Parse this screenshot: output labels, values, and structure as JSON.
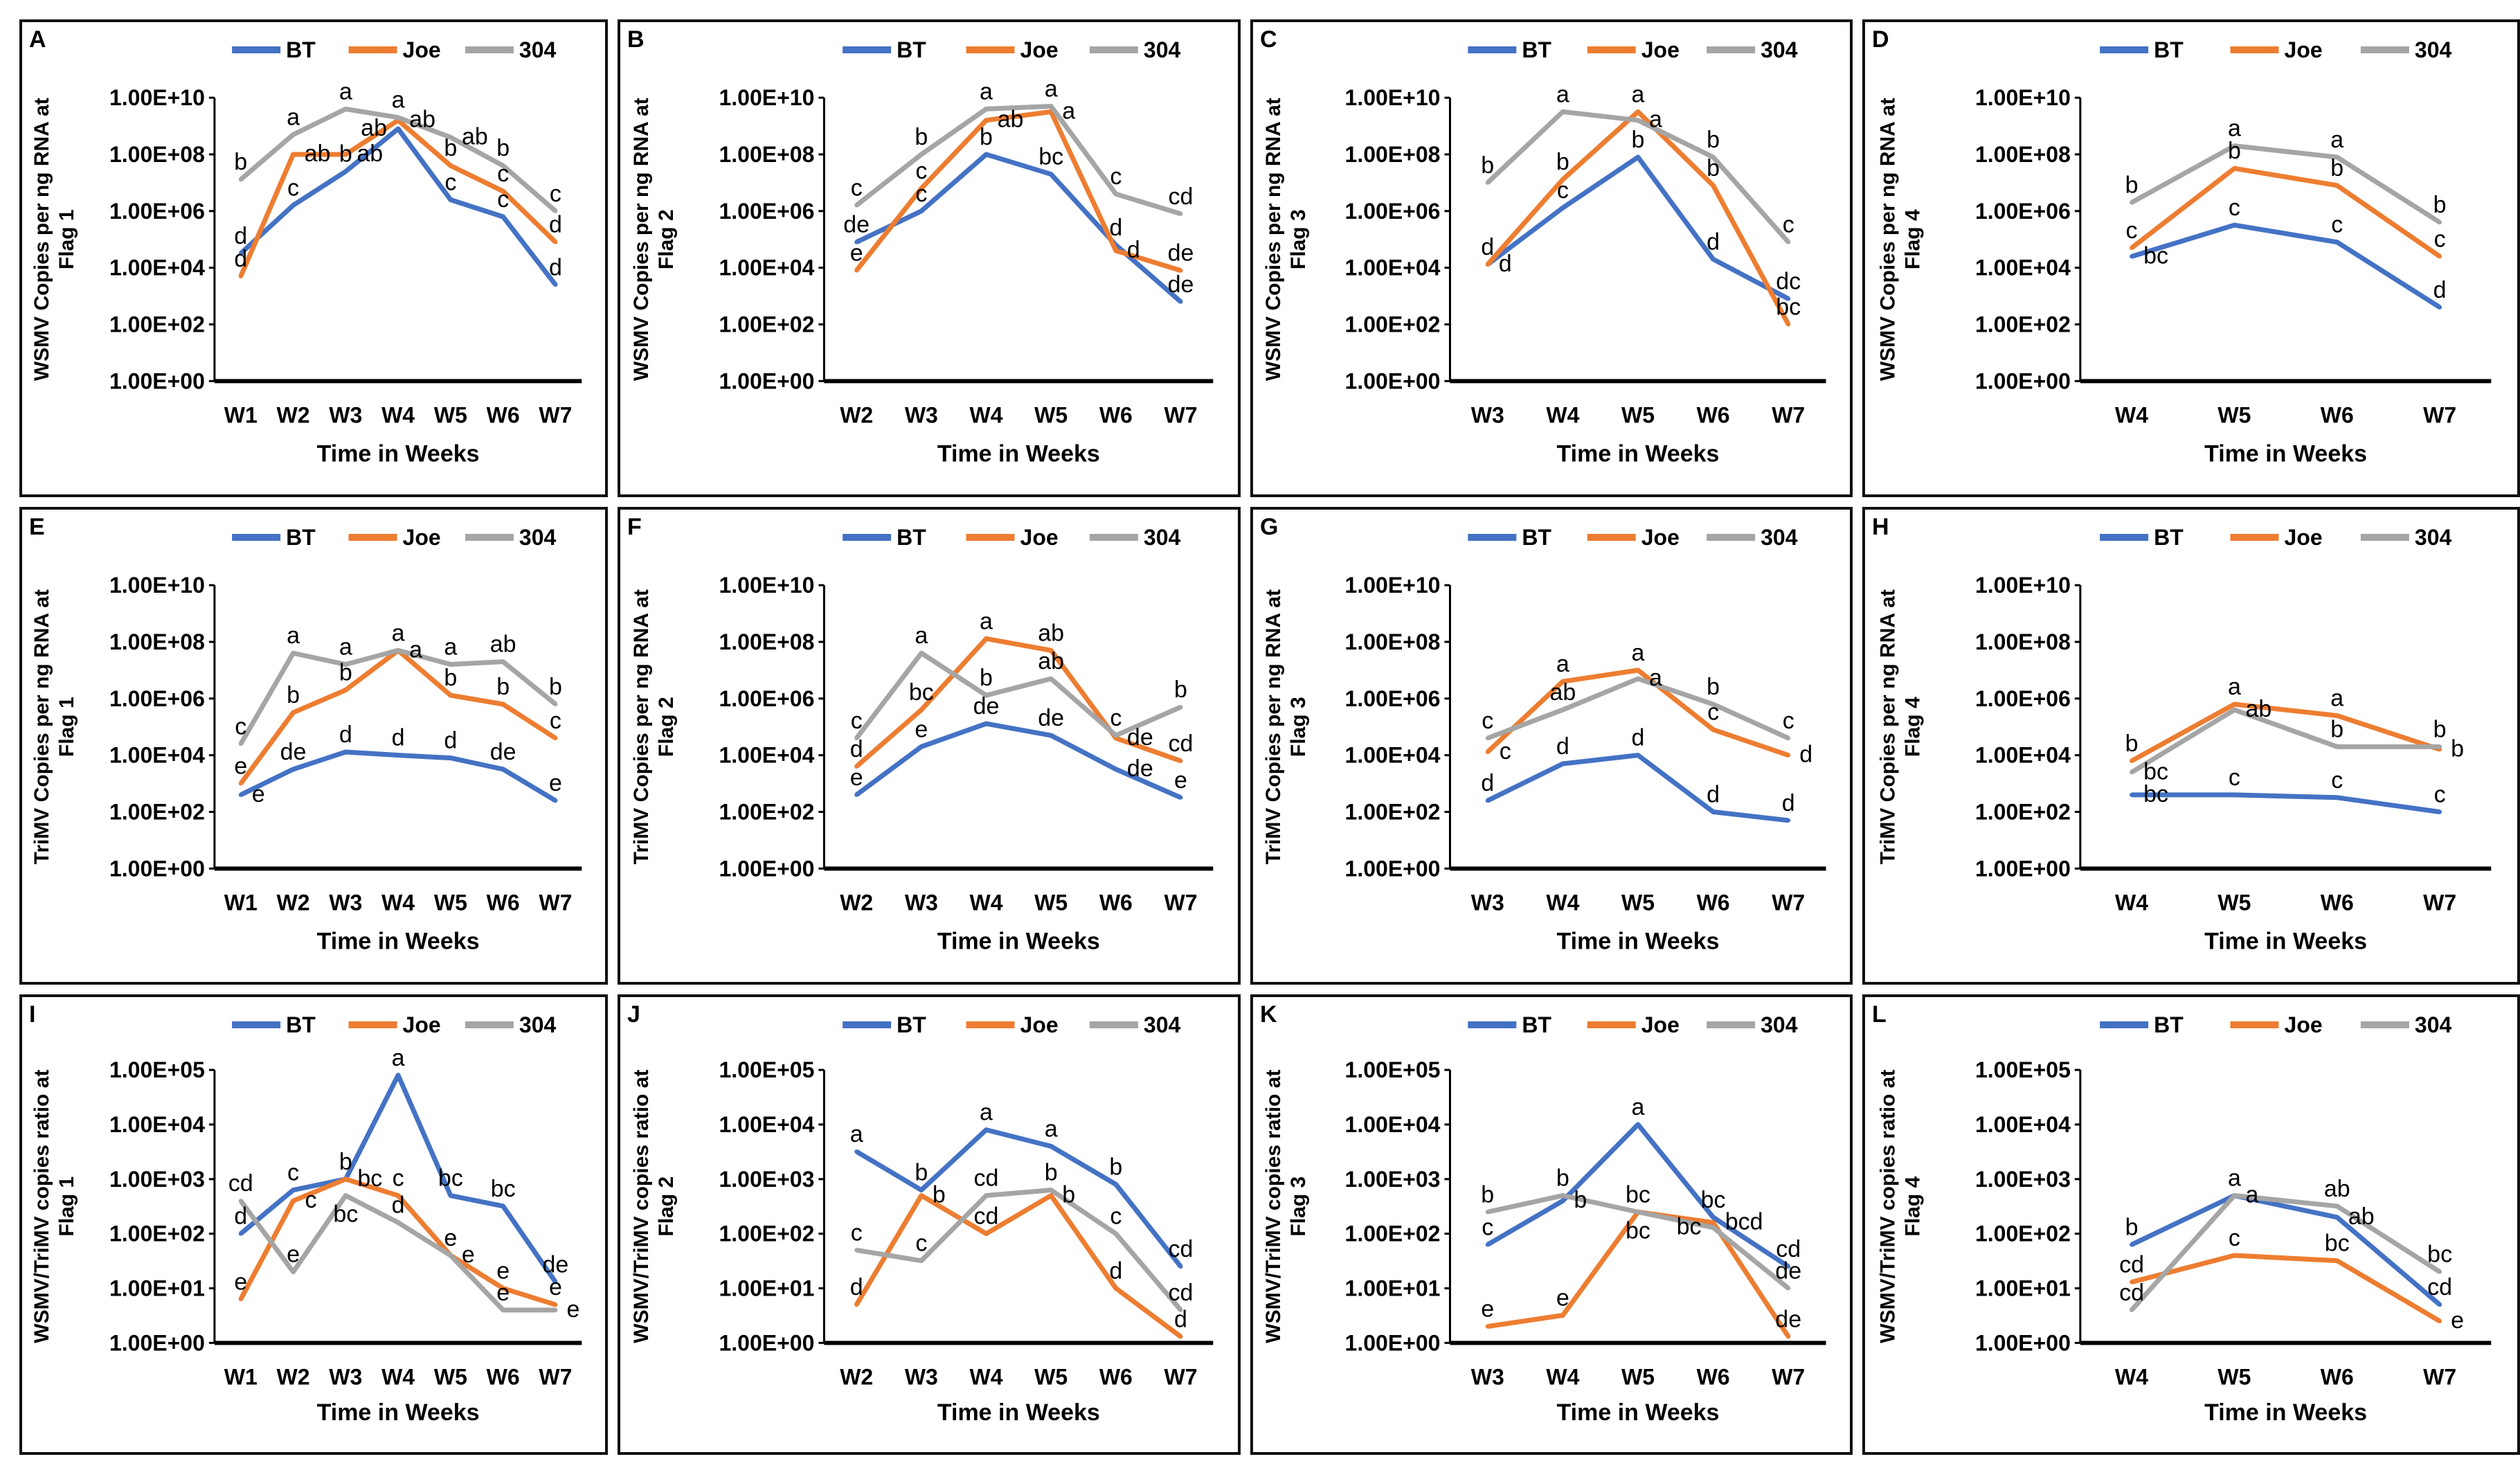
{
  "chart_data": [
    {
      "panel": "A",
      "type": "line",
      "ylabel": "WSMV Copies per ng RNA at Flag 1",
      "xlabel": "Time in Weeks",
      "y_scale": "log",
      "ylim": [
        1,
        10000000000.0
      ],
      "yticks": [
        "1.00E+00",
        "1.00E+02",
        "1.00E+04",
        "1.00E+06",
        "1.00E+08",
        "1.00E+10"
      ],
      "categories": [
        "W1",
        "W2",
        "W3",
        "W4",
        "W5",
        "W6",
        "W7"
      ],
      "series": [
        {
          "name": "BT",
          "color": "#4472C4",
          "values": [
            32000.0,
            1600000.0,
            25000000.0,
            800000000.0,
            2500000.0,
            630000.0,
            2500.0
          ],
          "letters": [
            "d",
            "c",
            "b",
            "ab",
            "c",
            "c",
            "d"
          ]
        },
        {
          "name": "Joe",
          "color": "#ED7D31",
          "values": [
            5000.0,
            100000000.0,
            100000000.0,
            1600000000.0,
            40000000.0,
            5000000.0,
            80000.0
          ],
          "letters": [
            "d",
            "ab",
            "ab",
            "ab",
            "b",
            "c",
            "d"
          ]
        },
        {
          "name": "304",
          "color": "#A5A5A5",
          "values": [
            13000000.0,
            500000000.0,
            4000000000.0,
            2000000000.0,
            400000000.0,
            40000000.0,
            1000000.0
          ],
          "letters": [
            "b",
            "a",
            "a",
            "a",
            "ab",
            "b",
            "c"
          ]
        }
      ]
    },
    {
      "panel": "B",
      "type": "line",
      "ylabel": "WSMV Copies per ng RNA at Flag 2",
      "xlabel": "Time in Weeks",
      "y_scale": "log",
      "ylim": [
        1,
        10000000000.0
      ],
      "yticks": [
        "1.00E+00",
        "1.00E+02",
        "1.00E+04",
        "1.00E+06",
        "1.00E+08",
        "1.00E+10"
      ],
      "categories": [
        "W2",
        "W3",
        "W4",
        "W5",
        "W6",
        "W7"
      ],
      "series": [
        {
          "name": "BT",
          "color": "#4472C4",
          "values": [
            80000.0,
            1000000.0,
            100000000.0,
            20000000.0,
            63000.0,
            630.0
          ],
          "letters": [
            "de",
            "c",
            "b",
            "bc",
            "d",
            "de"
          ]
        },
        {
          "name": "Joe",
          "color": "#ED7D31",
          "values": [
            8000.0,
            6300000.0,
            1600000000.0,
            3200000000.0,
            40000.0,
            8000.0
          ],
          "letters": [
            "e",
            "c",
            "ab",
            "a",
            "d",
            "de"
          ]
        },
        {
          "name": "304",
          "color": "#A5A5A5",
          "values": [
            1600000.0,
            100000000.0,
            4000000000.0,
            5000000000.0,
            4000000.0,
            800000.0
          ],
          "letters": [
            "c",
            "b",
            "a",
            "a",
            "c",
            "cd"
          ]
        }
      ]
    },
    {
      "panel": "C",
      "type": "line",
      "ylabel": "WSMV Copies per ng RNA at Flag 3",
      "xlabel": "Time in Weeks",
      "y_scale": "log",
      "ylim": [
        1,
        10000000000.0
      ],
      "yticks": [
        "1.00E+00",
        "1.00E+02",
        "1.00E+04",
        "1.00E+06",
        "1.00E+08",
        "1.00E+10"
      ],
      "categories": [
        "W3",
        "W4",
        "W5",
        "W6",
        "W7"
      ],
      "series": [
        {
          "name": "BT",
          "color": "#4472C4",
          "values": [
            13000.0,
            1300000.0,
            80000000.0,
            20000.0,
            800.0
          ],
          "letters": [
            "d",
            "c",
            "b",
            "d",
            "dc"
          ]
        },
        {
          "name": "Joe",
          "color": "#ED7D31",
          "values": [
            13000.0,
            13000000.0,
            3200000000.0,
            8000000.0,
            100.0
          ],
          "letters": [
            "d",
            "b",
            "a",
            "b",
            "bc"
          ]
        },
        {
          "name": "304",
          "color": "#A5A5A5",
          "values": [
            10000000.0,
            3200000000.0,
            1600000000.0,
            80000000.0,
            80000.0
          ],
          "letters": [
            "b",
            "a",
            "a",
            "b",
            "c"
          ]
        }
      ]
    },
    {
      "panel": "D",
      "type": "line",
      "ylabel": "WSMV Copies per ng RNA at Flag 4",
      "xlabel": "Time in Weeks",
      "y_scale": "log",
      "ylim": [
        1,
        10000000000.0
      ],
      "yticks": [
        "1.00E+00",
        "1.00E+02",
        "1.00E+04",
        "1.00E+06",
        "1.00E+08",
        "1.00E+10"
      ],
      "categories": [
        "W4",
        "W5",
        "W6",
        "W7"
      ],
      "series": [
        {
          "name": "BT",
          "color": "#4472C4",
          "values": [
            25000.0,
            320000.0,
            80000.0,
            400.0
          ],
          "letters": [
            "bc",
            "c",
            "c",
            "d"
          ]
        },
        {
          "name": "Joe",
          "color": "#ED7D31",
          "values": [
            50000.0,
            32000000.0,
            8000000.0,
            25000.0
          ],
          "letters": [
            "c",
            "b",
            "b",
            "c"
          ]
        },
        {
          "name": "304",
          "color": "#A5A5A5",
          "values": [
            2000000.0,
            200000000.0,
            80000000.0,
            400000.0
          ],
          "letters": [
            "b",
            "a",
            "a",
            "b"
          ]
        }
      ]
    },
    {
      "panel": "E",
      "type": "line",
      "ylabel": "TriMV Copies per ng RNA at Flag 1",
      "xlabel": "Time in Weeks",
      "y_scale": "log",
      "ylim": [
        1,
        10000000000.0
      ],
      "yticks": [
        "1.00E+00",
        "1.00E+02",
        "1.00E+04",
        "1.00E+06",
        "1.00E+08",
        "1.00E+10"
      ],
      "categories": [
        "W1",
        "W2",
        "W3",
        "W4",
        "W5",
        "W6",
        "W7"
      ],
      "series": [
        {
          "name": "BT",
          "color": "#4472C4",
          "values": [
            400.0,
            3200.0,
            13000.0,
            10000.0,
            8000.0,
            3200.0,
            250.0
          ],
          "letters": [
            "e",
            "de",
            "d",
            "d",
            "d",
            "de",
            "e"
          ]
        },
        {
          "name": "Joe",
          "color": "#ED7D31",
          "values": [
            1000.0,
            320000.0,
            2000000.0,
            50000000.0,
            1300000.0,
            630000.0,
            40000.0
          ],
          "letters": [
            "e",
            "b",
            "b",
            "a",
            "b",
            "b",
            "c"
          ]
        },
        {
          "name": "304",
          "color": "#A5A5A5",
          "values": [
            25000.0,
            40000000.0,
            16000000.0,
            50000000.0,
            16000000.0,
            20000000.0,
            630000.0
          ],
          "letters": [
            "c",
            "a",
            "a",
            "a",
            "a",
            "ab",
            "b"
          ]
        }
      ]
    },
    {
      "panel": "F",
      "type": "line",
      "ylabel": "TriMV Copies per ng RNA at Flag 2",
      "xlabel": "Time in Weeks",
      "y_scale": "log",
      "ylim": [
        1,
        10000000000.0
      ],
      "yticks": [
        "1.00E+00",
        "1.00E+02",
        "1.00E+04",
        "1.00E+06",
        "1.00E+08",
        "1.00E+10"
      ],
      "categories": [
        "W2",
        "W3",
        "W4",
        "W5",
        "W6",
        "W7"
      ],
      "series": [
        {
          "name": "BT",
          "color": "#4472C4",
          "values": [
            400.0,
            20000.0,
            130000.0,
            50000.0,
            3200.0,
            320.0
          ],
          "letters": [
            "e",
            "e",
            "de",
            "de",
            "de",
            "e"
          ]
        },
        {
          "name": "Joe",
          "color": "#ED7D31",
          "values": [
            4000.0,
            400000.0,
            130000000.0,
            50000000.0,
            40000.0,
            6300.0
          ],
          "letters": [
            "d",
            "bc",
            "a",
            "ab",
            "de",
            "cd"
          ]
        },
        {
          "name": "304",
          "color": "#A5A5A5",
          "values": [
            40000.0,
            40000000.0,
            1300000.0,
            5000000.0,
            50000.0,
            500000.0
          ],
          "letters": [
            "c",
            "a",
            "b",
            "ab",
            "c",
            "b"
          ]
        }
      ]
    },
    {
      "panel": "G",
      "type": "line",
      "ylabel": "TriMV Copies per ng RNA at Flag 3",
      "xlabel": "Time in Weeks",
      "y_scale": "log",
      "ylim": [
        1,
        10000000000.0
      ],
      "yticks": [
        "1.00E+00",
        "1.00E+02",
        "1.00E+04",
        "1.00E+06",
        "1.00E+08",
        "1.00E+10"
      ],
      "categories": [
        "W3",
        "W4",
        "W5",
        "W6",
        "W7"
      ],
      "series": [
        {
          "name": "BT",
          "color": "#4472C4",
          "values": [
            250.0,
            5000.0,
            10000.0,
            100.0,
            50.0
          ],
          "letters": [
            "d",
            "d",
            "d",
            "d",
            "d"
          ]
        },
        {
          "name": "Joe",
          "color": "#ED7D31",
          "values": [
            13000.0,
            4000000.0,
            10000000.0,
            80000.0,
            10000.0
          ],
          "letters": [
            "c",
            "a",
            "a",
            "c",
            "d"
          ]
        },
        {
          "name": "304",
          "color": "#A5A5A5",
          "values": [
            40000.0,
            400000.0,
            5000000.0,
            630000.0,
            40000.0
          ],
          "letters": [
            "c",
            "ab",
            "a",
            "b",
            "c"
          ]
        }
      ]
    },
    {
      "panel": "H",
      "type": "line",
      "ylabel": "TriMV Copies per ng RNA at Flag 4",
      "xlabel": "Time in Weeks",
      "y_scale": "log",
      "ylim": [
        1,
        10000000000.0
      ],
      "yticks": [
        "1.00E+00",
        "1.00E+02",
        "1.00E+04",
        "1.00E+06",
        "1.00E+08",
        "1.00E+10"
      ],
      "categories": [
        "W4",
        "W5",
        "W6",
        "W7"
      ],
      "series": [
        {
          "name": "BT",
          "color": "#4472C4",
          "values": [
            400.0,
            400.0,
            320.0,
            100.0
          ],
          "letters": [
            "bc",
            "c",
            "c",
            "c"
          ]
        },
        {
          "name": "Joe",
          "color": "#ED7D31",
          "values": [
            6300.0,
            630000.0,
            250000.0,
            16000.0
          ],
          "letters": [
            "b",
            "a",
            "a",
            "b"
          ]
        },
        {
          "name": "304",
          "color": "#A5A5A5",
          "values": [
            2500.0,
            400000.0,
            20000.0,
            20000.0
          ],
          "letters": [
            "bc",
            "ab",
            "b",
            "b"
          ]
        }
      ]
    },
    {
      "panel": "I",
      "type": "line",
      "ylabel": "WSMV/TriMV copies ratio at Flag 1",
      "xlabel": "Time in Weeks",
      "y_scale": "log",
      "ylim": [
        1,
        100000.0
      ],
      "yticks": [
        "1.00E+00",
        "1.00E+01",
        "1.00E+02",
        "1.00E+03",
        "1.00E+04",
        "1.00E+05"
      ],
      "categories": [
        "W1",
        "W2",
        "W3",
        "W4",
        "W5",
        "W6",
        "W7"
      ],
      "series": [
        {
          "name": "BT",
          "color": "#4472C4",
          "values": [
            100.0,
            630.0,
            1000.0,
            80000.0,
            500.0,
            320.0,
            13.0
          ],
          "letters": [
            "d",
            "c",
            "b",
            "a",
            "bc",
            "bc",
            "de"
          ]
        },
        {
          "name": "Joe",
          "color": "#ED7D31",
          "values": [
            6.3,
            400.0,
            1000.0,
            500.0,
            40.0,
            10.0,
            5
          ],
          "letters": [
            "e",
            "c",
            "bc",
            "c",
            "e",
            "e",
            "e"
          ]
        },
        {
          "name": "304",
          "color": "#A5A5A5",
          "values": [
            400.0,
            20.0,
            500.0,
            160.0,
            40.0,
            4,
            4
          ],
          "letters": [
            "cd",
            "e",
            "bc",
            "d",
            "e",
            "e",
            "e"
          ]
        }
      ]
    },
    {
      "panel": "J",
      "type": "line",
      "ylabel": "WSMV/TriMV copies ratio at Flag 2",
      "xlabel": "Time in Weeks",
      "y_scale": "log",
      "ylim": [
        1,
        100000.0
      ],
      "yticks": [
        "1.00E+00",
        "1.00E+01",
        "1.00E+02",
        "1.00E+03",
        "1.00E+04",
        "1.00E+05"
      ],
      "categories": [
        "W2",
        "W3",
        "W4",
        "W5",
        "W6",
        "W7"
      ],
      "series": [
        {
          "name": "BT",
          "color": "#4472C4",
          "values": [
            3200.0,
            630.0,
            8000.0,
            4000.0,
            800.0,
            25.0
          ],
          "letters": [
            "a",
            "b",
            "a",
            "a",
            "b",
            "cd"
          ]
        },
        {
          "name": "Joe",
          "color": "#ED7D31",
          "values": [
            5,
            500.0,
            100.0,
            500.0,
            10.0,
            1.3
          ],
          "letters": [
            "d",
            "b",
            "cd",
            "b",
            "d",
            "d"
          ]
        },
        {
          "name": "304",
          "color": "#A5A5A5",
          "values": [
            50.0,
            32.0,
            500.0,
            630.0,
            100.0,
            4
          ],
          "letters": [
            "c",
            "c",
            "cd",
            "b",
            "c",
            "cd"
          ]
        }
      ]
    },
    {
      "panel": "K",
      "type": "line",
      "ylabel": "WSMV/TriMV copies ratio at Flag 3",
      "xlabel": "Time in Weeks",
      "y_scale": "log",
      "ylim": [
        1,
        100000.0
      ],
      "yticks": [
        "1.00E+00",
        "1.00E+01",
        "1.00E+02",
        "1.00E+03",
        "1.00E+04",
        "1.00E+05"
      ],
      "categories": [
        "W3",
        "W4",
        "W5",
        "W6",
        "W7"
      ],
      "series": [
        {
          "name": "BT",
          "color": "#4472C4",
          "values": [
            63.0,
            400.0,
            10000.0,
            200.0,
            25.0
          ],
          "letters": [
            "c",
            "b",
            "a",
            "bc",
            "cd"
          ]
        },
        {
          "name": "Joe",
          "color": "#ED7D31",
          "values": [
            2,
            3.2,
            250.0,
            160.0,
            1.3
          ],
          "letters": [
            "e",
            "e",
            "bc",
            "bcd",
            "de"
          ]
        },
        {
          "name": "304",
          "color": "#A5A5A5",
          "values": [
            250.0,
            500.0,
            250.0,
            130.0,
            10.0
          ],
          "letters": [
            "b",
            "b",
            "bc",
            "bc",
            "de"
          ]
        }
      ]
    },
    {
      "panel": "L",
      "type": "line",
      "ylabel": "WSMV/TriMV copies ratio at Flag 4",
      "xlabel": "Time in Weeks",
      "y_scale": "log",
      "ylim": [
        1,
        100000.0
      ],
      "yticks": [
        "1.00E+00",
        "1.00E+01",
        "1.00E+02",
        "1.00E+03",
        "1.00E+04",
        "1.00E+05"
      ],
      "categories": [
        "W4",
        "W5",
        "W6",
        "W7"
      ],
      "series": [
        {
          "name": "BT",
          "color": "#4472C4",
          "values": [
            63.0,
            500.0,
            200.0,
            5
          ],
          "letters": [
            "b",
            "a",
            "ab",
            "cd"
          ]
        },
        {
          "name": "Joe",
          "color": "#ED7D31",
          "values": [
            13.0,
            40.0,
            32.0,
            2.5
          ],
          "letters": [
            "cd",
            "c",
            "bc",
            "e"
          ]
        },
        {
          "name": "304",
          "color": "#A5A5A5",
          "values": [
            4,
            500.0,
            320.0,
            20.0
          ],
          "letters": [
            "cd",
            "a",
            "ab",
            "bc"
          ]
        }
      ]
    }
  ],
  "legend_position": "top-right",
  "grid": false
}
